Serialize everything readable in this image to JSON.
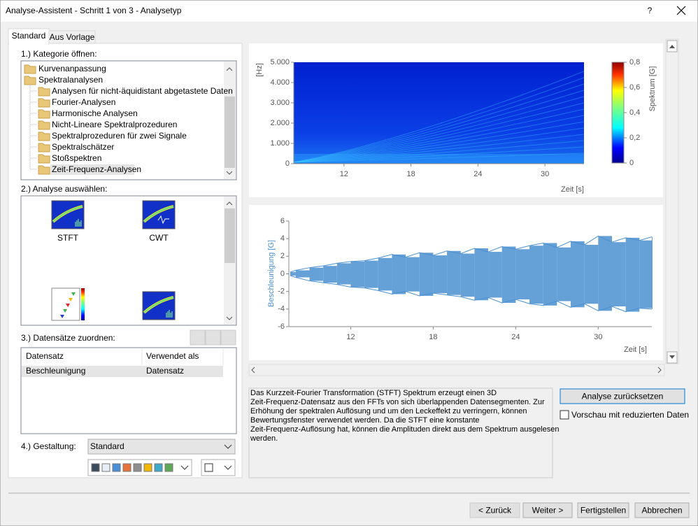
{
  "window": {
    "title": "Analyse-Assistent - Schritt 1 von 3 - Analysetyp",
    "help": "?"
  },
  "tabs": [
    "Standard",
    "Aus Vorlage"
  ],
  "section1": {
    "label": "1.) Kategorie öffnen:",
    "tree": [
      {
        "name": "Kurvenanpassung"
      },
      {
        "name": "Spektralanalysen",
        "children": [
          "Analysen für nicht-äquidistant abgetastete Daten",
          "Fourier-Analysen",
          "Harmonische Analysen",
          "Nicht-Lineare Spektralprozeduren",
          "Spektralprozeduren für zwei Signale",
          "Spektralschätzer",
          "Stoßspektren",
          "Zeit-Frequenz-Analysen"
        ]
      }
    ],
    "selected_child": 7
  },
  "section2": {
    "label": "2.) Analyse auswählen:",
    "analyses": [
      "STFT",
      "CWT",
      null,
      null
    ]
  },
  "section3": {
    "label": "3.) Datensätze zuordnen:",
    "columns": [
      "Datensatz",
      "Verwendet als"
    ],
    "rows": [
      [
        "Beschleunigung",
        "Datensatz"
      ]
    ]
  },
  "section4": {
    "label": "4.) Gestaltung:",
    "style": "Standard",
    "palette": [
      "#3d4a5c",
      "#e8eef6",
      "#4a90d9",
      "#e8733a",
      "#8f8f8f",
      "#f2b705",
      "#3fa9c9",
      "#5fa85a"
    ]
  },
  "spectrogram": {
    "ylabel": "[Hz]",
    "xlabel": "Zeit [s]",
    "xlim": [
      7.5,
      33.5
    ],
    "ylim": [
      0,
      5000
    ],
    "xticks": [
      12,
      18,
      24,
      30
    ],
    "yticks": [
      0,
      {
        "value": 1000,
        "label": "1.000"
      },
      {
        "value": 2000,
        "label": "2.000"
      },
      {
        "value": 3000,
        "label": "3.000"
      },
      {
        "value": 4000,
        "label": "4.000"
      },
      {
        "value": 5000,
        "label": "5.000"
      }
    ],
    "colorbar": {
      "label": "Spektrum [G]",
      "lim": [
        0,
        0.8
      ],
      "ticks": [
        0,
        {
          "value": 0.2,
          "label": "0,2"
        },
        {
          "value": 0.4,
          "label": "0,4"
        },
        {
          "value": 0.6,
          "label": "0,6"
        },
        {
          "value": 0.8,
          "label": "0,8"
        }
      ]
    }
  },
  "signal": {
    "ylabel": "Beschleunigung [G]",
    "xlabel": "Zeit [s]",
    "xlim": [
      7.5,
      33.9
    ],
    "ylim": [
      -6,
      6
    ],
    "xticks": [
      12,
      18,
      24,
      30
    ],
    "yticks": [
      -6,
      -4,
      -2,
      0,
      2,
      4,
      6
    ],
    "color": "#4a8fd0",
    "x": [
      7.6,
      8,
      9,
      10,
      11,
      12,
      13,
      14,
      15,
      16,
      17,
      18,
      19,
      20,
      21,
      22,
      23,
      24,
      25,
      26,
      27,
      28,
      29,
      30,
      31,
      32,
      33,
      33.9
    ],
    "upper": [
      0.2,
      0.4,
      0.7,
      0.9,
      1.2,
      1.4,
      1.5,
      1.8,
      2.2,
      1.9,
      2.4,
      2.1,
      2.6,
      2.3,
      2.9,
      2.5,
      3.1,
      2.8,
      3.2,
      3.5,
      3.0,
      3.7,
      3.3,
      4.3,
      3.6,
      4.1,
      3.8,
      4.2
    ],
    "lower": [
      -0.2,
      -0.4,
      -0.8,
      -1.0,
      -1.2,
      -1.5,
      -1.6,
      -1.9,
      -2.3,
      -2.0,
      -2.5,
      -2.2,
      -2.4,
      -2.6,
      -3.0,
      -2.7,
      -3.3,
      -2.9,
      -3.4,
      -3.6,
      -3.1,
      -3.8,
      -3.4,
      -4.2,
      -3.7,
      -4.3,
      -3.9,
      -4.0
    ]
  },
  "description": [
    "Das Kurzzeit-Fourier Transformation (STFT) Spektrum erzeugt einen 3D",
    "Zeit-Frequenz-Datensatz aus den FFTs von sich überlappenden Datensegmenten. Zur",
    "Erhöhung der spektralen Auflösung und um den Leckeffekt zu verringern, können",
    "Bewertungsfenster verwendet werden. Da die STFT eine konstante",
    "Zeit-Frequenz-Auflösung hat, können die Amplituden direkt aus dem Spektrum ausgelesen",
    "werden."
  ],
  "reset_button": "Analyse zurücksetzen",
  "preview_checkbox": {
    "label": "Vorschau mit reduzierten Daten",
    "checked": false
  },
  "buttons": [
    {
      "label": "< Zurück",
      "enabled": false
    },
    {
      "label": "Weiter >",
      "enabled": true
    },
    {
      "label": "Fertigstellen",
      "enabled": true
    },
    {
      "label": "Abbrechen",
      "enabled": true
    }
  ]
}
